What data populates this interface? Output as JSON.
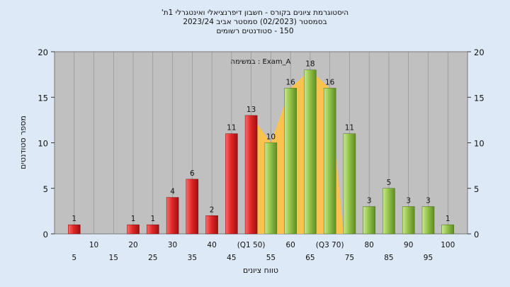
{
  "chart_data": {
    "type": "bar",
    "title_lines": [
      "היסטוגרמת ציונים בקורס - חשבון דיפרנציאלי ואינטגרלי 1ת'",
      "בסמסטר (02/2023) סמסטר אביב 2023/24",
      "150 - סטודנטים רשומים"
    ],
    "xlabel": "טווח ציונים",
    "ylabel": "מספר סטודנטים",
    "ylim": [
      0,
      20
    ],
    "y_ticks": [
      0,
      5,
      10,
      15,
      20
    ],
    "legend": "במשימה : Exam_A",
    "x_tick_labels_top": [
      "10",
      "20",
      "30",
      "40",
      "(Q1 50)",
      "60",
      "(Q3 70)",
      "80",
      "90",
      "100"
    ],
    "x_tick_labels_bottom": [
      "5",
      "15",
      "25",
      "35",
      "45",
      "55",
      "65",
      "75",
      "85",
      "95"
    ],
    "bins": [
      5,
      10,
      15,
      20,
      25,
      30,
      35,
      40,
      45,
      50,
      55,
      60,
      65,
      70,
      75,
      80,
      85,
      90,
      95,
      100
    ],
    "values": [
      1,
      0,
      0,
      1,
      1,
      4,
      6,
      2,
      11,
      13,
      10,
      16,
      18,
      16,
      11,
      3,
      5,
      3,
      3,
      1
    ],
    "value_labels": [
      "1",
      "",
      "",
      "1",
      "1",
      "4",
      "6",
      "2",
      "11",
      "13",
      "10",
      "16",
      "18",
      "16",
      "11",
      "3",
      "5",
      "3",
      "3",
      "1"
    ],
    "fail_threshold": 50,
    "quartile_band": [
      50,
      70
    ],
    "colors": {
      "fail_bar": "#e03030",
      "pass_bar": "#96c450",
      "band": "#ffc244",
      "plot_bg": "#c0c0c0",
      "page_bg": "#dde9f6"
    }
  }
}
